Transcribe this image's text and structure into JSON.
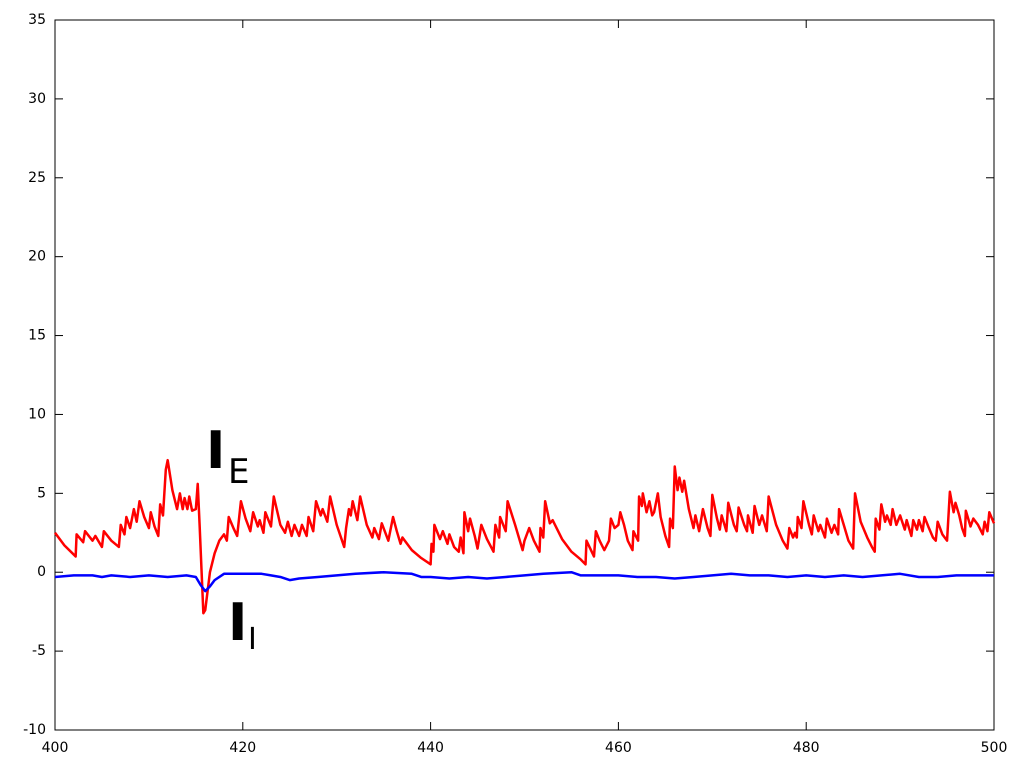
{
  "chart_data": {
    "type": "line",
    "xlim": [
      400,
      500
    ],
    "xticks": [
      400,
      420,
      440,
      460,
      480,
      500
    ],
    "ylim": [
      -10,
      35
    ],
    "yticks": [
      -10,
      -5,
      0,
      5,
      10,
      15,
      20,
      25,
      30,
      35
    ],
    "grid": false,
    "annotations": [
      {
        "text": "I",
        "subscript": "E",
        "color": "#e8202a"
      },
      {
        "text": "I",
        "subscript": "I",
        "color": "#3a3ad0"
      }
    ],
    "series": [
      {
        "color": "#ff0000",
        "x": [
          400,
          401,
          402.2,
          402.3,
          403,
          403.2,
          404,
          404.3,
          405,
          405.2,
          406,
          406.8,
          407,
          407.4,
          407.6,
          408,
          408.4,
          408.7,
          409,
          409.5,
          410,
          410.2,
          410.6,
          411,
          411.2,
          411.5,
          411.8,
          412,
          412.5,
          413,
          413.3,
          413.6,
          413.8,
          414.1,
          414.3,
          414.6,
          415,
          415.2,
          415.4,
          415.6,
          415.8,
          416,
          416.5,
          417,
          417.5,
          418,
          418.3,
          418.5,
          419,
          419.4,
          419.8,
          420.3,
          420.8,
          421.1,
          421.6,
          421.8,
          422.2,
          422.4,
          423,
          423.3,
          424,
          424.5,
          424.8,
          425.2,
          425.5,
          426,
          426.3,
          426.8,
          427,
          427.5,
          427.8,
          428.3,
          428.5,
          429,
          429.3,
          430,
          430.8,
          431,
          431.3,
          431.5,
          431.7,
          432.2,
          432.5,
          433.2,
          433.8,
          434,
          434.5,
          434.8,
          435.5,
          436,
          436.4,
          436.8,
          437,
          438,
          439,
          440,
          440.1,
          440.3,
          440.4,
          441,
          441.3,
          441.8,
          442,
          442.5,
          443,
          443.2,
          443.5,
          443.6,
          444,
          444.2,
          444.7,
          445,
          445.4,
          446,
          446.7,
          446.9,
          447.3,
          447.4,
          448,
          448.2,
          449,
          449.8,
          450,
          450.5,
          451,
          451.6,
          451.7,
          452,
          452.2,
          452.7,
          453,
          454,
          455,
          456,
          456.5,
          456.6,
          457,
          457.4,
          457.6,
          458,
          458.5,
          459,
          459.2,
          459.6,
          460,
          460.2,
          460.6,
          461,
          461.5,
          461.6,
          462.1,
          462.2,
          462.5,
          462.6,
          463,
          463.3,
          463.6,
          463.8,
          464.2,
          464.5,
          465,
          465.4,
          465.5,
          465.8,
          466,
          466.3,
          466.5,
          466.8,
          467,
          467.5,
          468,
          468.2,
          468.6,
          469,
          469.5,
          469.8,
          470,
          470.5,
          470.8,
          471,
          471.5,
          471.7,
          472.3,
          472.6,
          472.8,
          473.4,
          473.7,
          473.8,
          474.3,
          474.5,
          475,
          475.3,
          475.8,
          476,
          476.8,
          477.5,
          478,
          478.2,
          478.6,
          478.8,
          479,
          479.1,
          479.5,
          479.7,
          480.3,
          480.6,
          480.8,
          481.3,
          481.5,
          482,
          482.2,
          482.7,
          483,
          483.4,
          483.5,
          484,
          484.5,
          485,
          485.2,
          485.8,
          486.5,
          487,
          487.3,
          487.4,
          487.8,
          488,
          488.4,
          488.6,
          489,
          489.2,
          489.6,
          490,
          490.5,
          490.7,
          491.2,
          491.4,
          491.8,
          492,
          492.4,
          492.6,
          493,
          493.5,
          493.8,
          494,
          494.5,
          495,
          495.3,
          495.7,
          495.9,
          496.3,
          496.6,
          496.9,
          497,
          497.5,
          497.8,
          498.3,
          498.8,
          499,
          499.3,
          499.5,
          500
        ],
        "values": [
          2.5,
          1.7,
          1.0,
          2.4,
          1.9,
          2.6,
          2.0,
          2.3,
          1.6,
          2.6,
          2.0,
          1.6,
          3.0,
          2.4,
          3.5,
          2.8,
          4.0,
          3.2,
          4.5,
          3.5,
          2.8,
          3.8,
          2.9,
          2.3,
          4.3,
          3.6,
          6.5,
          7.1,
          5.2,
          4.0,
          5.0,
          4.0,
          4.7,
          4.0,
          4.8,
          3.9,
          4.0,
          5.6,
          3.0,
          0.2,
          -2.6,
          -2.4,
          0,
          1.2,
          2.0,
          2.4,
          2.0,
          3.5,
          2.8,
          2.3,
          4.5,
          3.4,
          2.6,
          3.8,
          2.9,
          3.3,
          2.5,
          3.8,
          2.9,
          4.8,
          3.0,
          2.5,
          3.2,
          2.3,
          3.0,
          2.3,
          3.0,
          2.3,
          3.5,
          2.6,
          4.5,
          3.6,
          4.0,
          3.2,
          4.8,
          3.0,
          1.6,
          2.8,
          4.0,
          3.6,
          4.5,
          3.3,
          4.8,
          3.0,
          2.2,
          2.8,
          2.1,
          3.1,
          2.0,
          3.5,
          2.6,
          1.8,
          2.2,
          1.4,
          0.9,
          0.5,
          1.8,
          1.3,
          3.0,
          2.1,
          2.6,
          1.8,
          2.4,
          1.6,
          1.3,
          2.2,
          1.2,
          3.8,
          2.6,
          3.4,
          2.3,
          1.5,
          3.0,
          2.1,
          1.3,
          3.0,
          2.2,
          3.5,
          2.6,
          4.5,
          3.0,
          1.4,
          2.0,
          2.8,
          2.0,
          1.3,
          2.8,
          2.2,
          4.5,
          3.1,
          3.3,
          2.1,
          1.3,
          0.8,
          0.5,
          2.0,
          1.5,
          1.0,
          2.6,
          2.0,
          1.4,
          2.0,
          3.4,
          2.8,
          3.0,
          3.8,
          3.0,
          2.0,
          1.4,
          2.6,
          2.0,
          4.8,
          4.2,
          5.0,
          3.8,
          4.5,
          3.6,
          3.8,
          5.0,
          3.5,
          2.3,
          1.6,
          3.4,
          2.8,
          6.7,
          5.2,
          6.0,
          5.1,
          5.8,
          4.0,
          2.8,
          3.6,
          2.6,
          4.0,
          2.8,
          2.3,
          4.9,
          3.4,
          2.7,
          3.6,
          2.6,
          4.4,
          3.0,
          2.6,
          4.1,
          3.0,
          2.6,
          3.6,
          2.5,
          4.2,
          3.0,
          3.6,
          2.6,
          4.8,
          3.0,
          2.0,
          1.5,
          2.8,
          2.2,
          2.5,
          2.2,
          3.5,
          2.8,
          4.5,
          3.0,
          2.4,
          3.6,
          2.6,
          3.0,
          2.2,
          3.4,
          2.5,
          3.0,
          2.4,
          4.0,
          3.0,
          2.0,
          1.5,
          5.0,
          3.2,
          2.2,
          1.6,
          1.3,
          3.4,
          2.7,
          4.3,
          3.2,
          3.6,
          3.0,
          4.0,
          3.0,
          3.6,
          2.7,
          3.3,
          2.3,
          3.3,
          2.7,
          3.3,
          2.6,
          3.5,
          2.9,
          2.2,
          2.0,
          3.2,
          2.4,
          2.0,
          5.1,
          3.8,
          4.4,
          3.6,
          2.8,
          2.3,
          3.9,
          2.9,
          3.4,
          3.0,
          2.4,
          3.2,
          2.6,
          3.8,
          3.1
        ]
      },
      {
        "color": "#0000ff",
        "x": [
          400,
          402,
          404,
          405,
          406,
          408,
          410,
          412,
          414,
          415,
          415.5,
          416,
          416.5,
          417,
          418,
          420,
          422,
          423,
          424,
          425,
          426,
          428,
          430,
          432,
          435,
          438,
          439,
          440,
          442,
          444,
          446,
          448,
          450,
          452,
          455,
          456,
          458,
          460,
          462,
          464,
          466,
          468,
          470,
          472,
          474,
          476,
          478,
          480,
          482,
          484,
          486,
          488,
          490,
          492,
          494,
          496,
          498,
          500
        ],
        "values": [
          -0.3,
          -0.2,
          -0.2,
          -0.3,
          -0.2,
          -0.3,
          -0.2,
          -0.3,
          -0.2,
          -0.3,
          -0.8,
          -1.2,
          -0.9,
          -0.5,
          -0.1,
          -0.1,
          -0.1,
          -0.2,
          -0.3,
          -0.5,
          -0.4,
          -0.3,
          -0.2,
          -0.1,
          0,
          -0.1,
          -0.3,
          -0.3,
          -0.4,
          -0.3,
          -0.4,
          -0.3,
          -0.2,
          -0.1,
          0,
          -0.2,
          -0.2,
          -0.2,
          -0.3,
          -0.3,
          -0.4,
          -0.3,
          -0.2,
          -0.1,
          -0.2,
          -0.2,
          -0.3,
          -0.2,
          -0.3,
          -0.2,
          -0.3,
          -0.2,
          -0.1,
          -0.3,
          -0.3,
          -0.2,
          -0.2,
          -0.2
        ]
      }
    ]
  }
}
